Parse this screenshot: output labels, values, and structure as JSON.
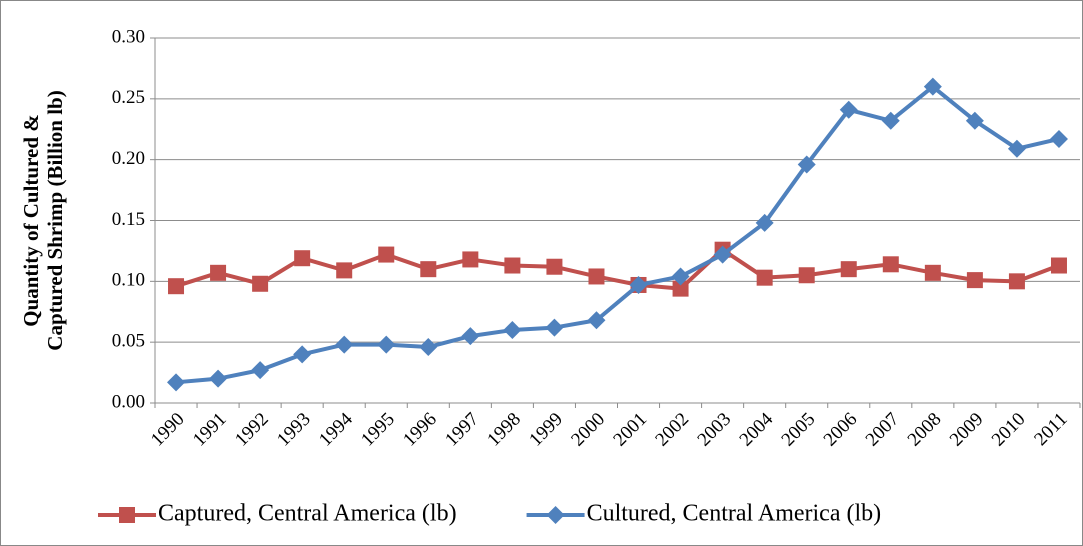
{
  "chart_data": {
    "type": "line",
    "ylabel": [
      "Quantity of Cultured &",
      "Captured Shrimp (Billion lb)"
    ],
    "categories": [
      "1990",
      "1991",
      "1992",
      "1993",
      "1994",
      "1995",
      "1996",
      "1997",
      "1998",
      "1999",
      "2000",
      "2001",
      "2002",
      "2003",
      "2004",
      "2005",
      "2006",
      "2007",
      "2008",
      "2009",
      "2010",
      "2011"
    ],
    "series": [
      {
        "name": "Captured, Central America (lb)",
        "color": "#c0504d",
        "marker": "square",
        "values": [
          0.096,
          0.107,
          0.098,
          0.119,
          0.109,
          0.122,
          0.11,
          0.118,
          0.113,
          0.112,
          0.104,
          0.097,
          0.094,
          0.126,
          0.103,
          0.105,
          0.11,
          0.114,
          0.107,
          0.101,
          0.1,
          0.113
        ]
      },
      {
        "name": "Cultured, Central America (lb)",
        "color": "#4f81bd",
        "marker": "diamond",
        "values": [
          0.017,
          0.02,
          0.027,
          0.04,
          0.048,
          0.048,
          0.046,
          0.055,
          0.06,
          0.062,
          0.068,
          0.097,
          0.104,
          0.122,
          0.148,
          0.196,
          0.241,
          0.232,
          0.26,
          0.232,
          0.209,
          0.217
        ]
      }
    ],
    "ylim": [
      0,
      0.3
    ],
    "yticks": [
      {
        "value": 0,
        "label": "0.00"
      },
      0.05,
      {
        "value": 0.1,
        "label": "0.10"
      },
      0.15,
      {
        "value": 0.2,
        "label": "0.20"
      },
      0.25,
      {
        "value": 0.3,
        "label": "0.30"
      }
    ],
    "grid": true,
    "legend": "bottom"
  }
}
